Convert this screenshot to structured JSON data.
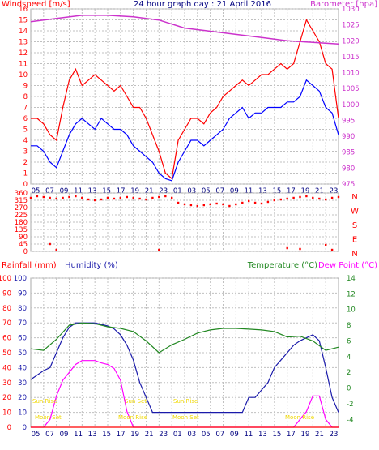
{
  "colors": {
    "windspeed": "#ff0000",
    "gust": "#ff0000",
    "wind_blue": "#0000ff",
    "barometer": "#cc33cc",
    "direction": "#ff0000",
    "rainfall": "#ff0000",
    "humidity": "#1a1aaa",
    "temperature": "#228822",
    "dewpoint": "#ff00ff",
    "sun_moon_labels": "#f0d800",
    "frame": "#a9a9a9"
  },
  "panel1": {
    "title_left": "Windspeed [m/s]",
    "title_center": "24 hour graph day : 21 April 2016",
    "title_right": "Barometer [hpa]"
  },
  "panel3": {
    "title_rainfall": "Rainfall (mm)",
    "title_humidity": "Humidity (%)",
    "title_temperature": "Temperature (°C)",
    "title_dewpoint": "Dew Point (°C)"
  },
  "chart_data": [
    {
      "type": "line",
      "title": "24 hour graph day : 21 April 2016",
      "x_tick_labels": [
        "05",
        "07",
        "09",
        "11",
        "13",
        "15",
        "17",
        "19",
        "21",
        "23",
        "01",
        "03",
        "05",
        "07",
        "09",
        "11",
        "13",
        "15",
        "17",
        "19",
        "21",
        "23"
      ],
      "ylabel": "Windspeed [m/s]",
      "ylim": [
        0,
        16
      ],
      "yticks": [
        "0",
        "1",
        "2",
        "3",
        "4",
        "5",
        "6",
        "7",
        "8",
        "9",
        "10",
        "11",
        "12",
        "13",
        "14",
        "15",
        "16"
      ],
      "y2label": "Barometer [hpa]",
      "y2lim": [
        975,
        1030
      ],
      "y2ticks": [
        "975",
        "980",
        "985",
        "990",
        "995",
        "1000",
        "1005",
        "1010",
        "1015",
        "1020",
        "1025",
        "1030"
      ],
      "series": [
        {
          "name": "gust",
          "axis": "left",
          "x": [
            0,
            1,
            2,
            3,
            4,
            5,
            6,
            7,
            8,
            9,
            10,
            11,
            12,
            13,
            14,
            15,
            16,
            17,
            18,
            19,
            20,
            21,
            22,
            23,
            24,
            25,
            26,
            27,
            28,
            29,
            30,
            31,
            32,
            33,
            34,
            35,
            36,
            37,
            38,
            39,
            40,
            41,
            42,
            43,
            44,
            45,
            46,
            47,
            48
          ],
          "values": [
            6,
            6,
            5.5,
            4.5,
            4,
            7,
            9.5,
            10.5,
            9,
            9.5,
            10,
            9.5,
            9,
            8.5,
            9,
            8,
            7,
            7,
            6,
            4.5,
            3,
            1,
            0.5,
            4,
            5,
            6,
            6,
            5.5,
            6.5,
            7,
            8,
            8.5,
            9,
            9.5,
            9,
            9.5,
            10,
            10,
            10.5,
            11,
            10.5,
            11,
            13,
            15,
            14,
            13,
            11,
            10.5,
            6
          ]
        },
        {
          "name": "windspeed",
          "axis": "left",
          "x": [
            0,
            1,
            2,
            3,
            4,
            5,
            6,
            7,
            8,
            9,
            10,
            11,
            12,
            13,
            14,
            15,
            16,
            17,
            18,
            19,
            20,
            21,
            22,
            23,
            24,
            25,
            26,
            27,
            28,
            29,
            30,
            31,
            32,
            33,
            34,
            35,
            36,
            37,
            38,
            39,
            40,
            41,
            42,
            43,
            44,
            45,
            46,
            47,
            48
          ],
          "values": [
            3.5,
            3.5,
            3,
            2,
            1.5,
            3,
            4.5,
            5.5,
            6,
            5.5,
            5,
            6,
            5.5,
            5,
            5,
            4.5,
            3.5,
            3,
            2.5,
            2,
            1,
            0.5,
            0.3,
            2,
            3,
            4,
            4,
            3.5,
            4,
            4.5,
            5,
            6,
            6.5,
            7,
            6,
            6.5,
            6.5,
            7,
            7,
            7,
            7.5,
            7.5,
            8,
            9.5,
            9,
            8.5,
            7,
            6.5,
            4.5
          ]
        },
        {
          "name": "barometer",
          "axis": "right",
          "x": [
            0,
            4,
            8,
            12,
            16,
            20,
            24,
            28,
            32,
            36,
            40,
            44,
            48
          ],
          "values": [
            1026,
            1027,
            1028,
            1028,
            1027.5,
            1026.5,
            1024,
            1023,
            1022,
            1021,
            1020,
            1019.5,
            1019
          ]
        }
      ]
    },
    {
      "type": "scatter",
      "title": "",
      "x_tick_labels": [
        "05",
        "07",
        "09",
        "11",
        "13",
        "15",
        "17",
        "19",
        "21",
        "23",
        "01",
        "03",
        "05",
        "07",
        "09",
        "11",
        "13",
        "15",
        "17",
        "19",
        "21",
        "23"
      ],
      "ylabel": "",
      "ylim": [
        0,
        360
      ],
      "yticks": [
        "0",
        "45",
        "90",
        "135",
        "180",
        "225",
        "270",
        "315",
        "360"
      ],
      "y2ticks": [
        "N",
        "W",
        "S",
        "E",
        "N"
      ],
      "series": [
        {
          "name": "wind_direction",
          "x": [
            0,
            1,
            2,
            3,
            4,
            5,
            6,
            7,
            8,
            9,
            10,
            11,
            12,
            13,
            14,
            15,
            16,
            17,
            18,
            19,
            20,
            21,
            22,
            23,
            24,
            25,
            26,
            27,
            28,
            29,
            30,
            31,
            32,
            33,
            34,
            35,
            36,
            37,
            38,
            39,
            40,
            41,
            42,
            43,
            44,
            45,
            46,
            47,
            48
          ],
          "values": [
            330,
            340,
            335,
            330,
            325,
            330,
            335,
            340,
            330,
            320,
            315,
            320,
            330,
            325,
            330,
            335,
            330,
            325,
            320,
            330,
            335,
            340,
            330,
            300,
            290,
            285,
            280,
            285,
            290,
            295,
            290,
            280,
            290,
            300,
            310,
            300,
            295,
            305,
            315,
            320,
            325,
            330,
            335,
            340,
            330,
            325,
            320,
            330,
            335
          ]
        },
        {
          "name": "wind_direction_outliers",
          "x": [
            3,
            4,
            20,
            40,
            42,
            46,
            47
          ],
          "values": [
            45,
            10,
            10,
            20,
            15,
            40,
            10
          ]
        }
      ]
    },
    {
      "type": "line",
      "title": "",
      "x_tick_labels": [
        "05",
        "07",
        "09",
        "11",
        "13",
        "15",
        "17",
        "19",
        "21",
        "23",
        "01",
        "03",
        "05",
        "07",
        "09",
        "11",
        "13",
        "15",
        "17",
        "19",
        "21",
        "23"
      ],
      "ylabel": "Rainfall (mm) / Humidity (%)",
      "ylim": [
        0,
        100
      ],
      "yticks": [
        "0",
        "10",
        "20",
        "30",
        "40",
        "50",
        "60",
        "70",
        "80",
        "90",
        "100"
      ],
      "y2label": "Temperature (°C) / Dew Point (°C)",
      "y2lim": [
        -5,
        14
      ],
      "y2ticks": [
        "-4",
        "-2",
        "0",
        "2",
        "4",
        "6",
        "8",
        "10",
        "12",
        "14"
      ],
      "series": [
        {
          "name": "humidity",
          "axis": "left",
          "x": [
            0,
            1,
            2,
            3,
            4,
            5,
            6,
            7,
            8,
            9,
            10,
            11,
            12,
            13,
            14,
            15,
            16,
            17,
            18,
            19,
            20,
            21,
            22,
            23,
            24,
            25,
            26,
            27,
            28,
            29,
            30,
            31,
            32,
            33,
            34,
            35,
            36,
            37,
            38,
            39,
            40,
            41,
            42,
            43,
            44,
            45,
            46,
            47,
            48
          ],
          "values": [
            32,
            35,
            38,
            40,
            50,
            60,
            67,
            70,
            70,
            70,
            70,
            69,
            68,
            66,
            62,
            55,
            45,
            30,
            20,
            10,
            10,
            10,
            10,
            10,
            10,
            10,
            10,
            10,
            10,
            10,
            10,
            10,
            10,
            10,
            20,
            20,
            25,
            30,
            40,
            45,
            50,
            55,
            58,
            60,
            62,
            58,
            40,
            20,
            10
          ]
        },
        {
          "name": "temperature",
          "axis": "right",
          "x": [
            0,
            2,
            4,
            6,
            8,
            10,
            12,
            14,
            16,
            18,
            20,
            22,
            24,
            26,
            28,
            30,
            32,
            34,
            36,
            38,
            40,
            42,
            44,
            46,
            48
          ],
          "values": [
            5,
            4.8,
            6.2,
            8,
            8.3,
            8.2,
            7.8,
            7.6,
            7.2,
            6,
            4.5,
            5.5,
            6.2,
            7,
            7.4,
            7.6,
            7.6,
            7.5,
            7.4,
            7.2,
            6.5,
            6.6,
            6,
            4.8,
            5.2
          ]
        },
        {
          "name": "dew_point",
          "axis": "right",
          "x": [
            0,
            1,
            2,
            3,
            4,
            5,
            6,
            7,
            8,
            9,
            10,
            11,
            12,
            13,
            14,
            15,
            16,
            17,
            18,
            19,
            20,
            21,
            22,
            23,
            24,
            25,
            26,
            27,
            28,
            29,
            30,
            31,
            32,
            33,
            34,
            35,
            36,
            37,
            38,
            39,
            40,
            41,
            42,
            43,
            44,
            45,
            46,
            47,
            48
          ],
          "values": [
            -5,
            -5,
            -5,
            -4,
            -1,
            1,
            2,
            3,
            3.5,
            3.5,
            3.5,
            3.2,
            3,
            2.5,
            1,
            -3,
            -5,
            -5,
            -5,
            -5,
            -5,
            -5,
            -5,
            -5,
            -5,
            -5,
            -5,
            -5,
            -5,
            -5,
            -5,
            -5,
            -5,
            -5,
            -5,
            -5,
            -5,
            -5,
            -5,
            -5,
            -5,
            -5,
            -4,
            -3,
            -1,
            -1,
            -4,
            -5,
            -5
          ]
        },
        {
          "name": "rainfall",
          "axis": "left",
          "x": [
            0,
            48
          ],
          "values": [
            0,
            0
          ]
        }
      ],
      "annotations": [
        "Sun Rise",
        "Sun Set",
        "Sun Rise",
        "Moon Set",
        "Moon Rise",
        "Moon Set",
        "Moon Rise"
      ]
    }
  ]
}
